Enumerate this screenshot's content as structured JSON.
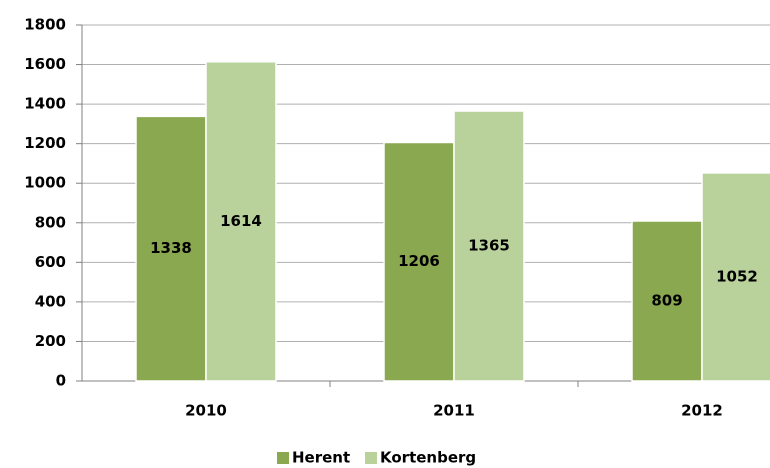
{
  "chart_data": {
    "type": "bar",
    "categories": [
      "2010",
      "2011",
      "2012"
    ],
    "series": [
      {
        "name": "Herent",
        "color": "#8aa84f",
        "values": [
          1338,
          1206,
          809
        ]
      },
      {
        "name": "Kortenberg",
        "color": "#b9d19a",
        "values": [
          1614,
          1365,
          1052
        ]
      }
    ],
    "ylim": [
      0,
      1800
    ],
    "yticks": [
      0,
      200,
      400,
      600,
      800,
      1000,
      1200,
      1400,
      1600,
      1800
    ],
    "grid": true,
    "legend": "bottom"
  }
}
